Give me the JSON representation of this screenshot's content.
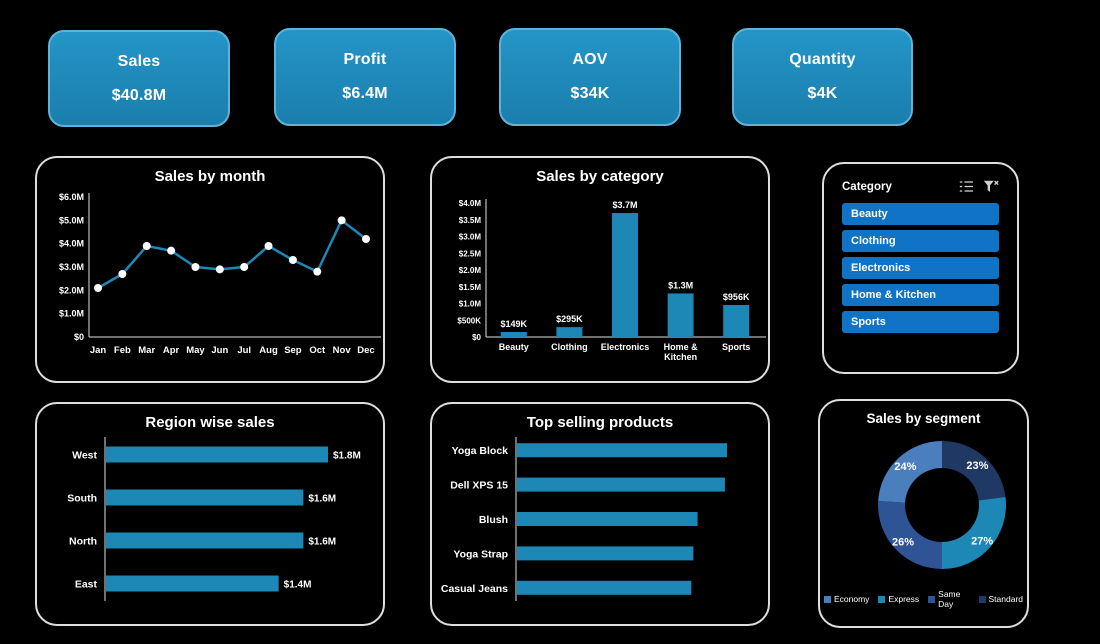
{
  "colors": {
    "background": "#000000",
    "accent": "#1d87b5",
    "axis": "#e0e0e0",
    "kpi_fill": "#1e88b8",
    "kpi_border": "#5fb3d9",
    "slicer_item_fill": "#1173c5",
    "card_border": "#dedede"
  },
  "kpis": [
    {
      "label": "Sales",
      "value": "$40.8M"
    },
    {
      "label": "Profit",
      "value": "$6.4M"
    },
    {
      "label": "AOV",
      "value": "$34K"
    },
    {
      "label": "Quantity",
      "value": "$4K"
    }
  ],
  "slicer": {
    "title": "Category",
    "icons": [
      "select-all-icon",
      "clear-filter-icon"
    ],
    "items": [
      "Beauty",
      "Clothing",
      "Electronics",
      "Home & Kitchen",
      "Sports"
    ]
  },
  "chart_data": [
    {
      "id": "sales_by_month",
      "type": "line",
      "title": "Sales by month",
      "x": [
        "Jan",
        "Feb",
        "Mar",
        "Apr",
        "May",
        "Jun",
        "Jul",
        "Aug",
        "Sep",
        "Oct",
        "Nov",
        "Dec"
      ],
      "values_musd": [
        2.1,
        2.7,
        3.9,
        3.7,
        3.0,
        2.9,
        3.0,
        3.9,
        3.3,
        2.8,
        5.0,
        4.2
      ],
      "ylim": [
        0,
        6
      ],
      "ytick_labels": [
        "$0",
        "$1.0M",
        "$2.0M",
        "$3.0M",
        "$4.0M",
        "$5.0M",
        "$6.0M"
      ],
      "xlabel": "",
      "ylabel": "",
      "marker": "white-dot",
      "grid": false
    },
    {
      "id": "sales_by_category",
      "type": "bar",
      "title": "Sales by category",
      "categories": [
        [
          "Beauty"
        ],
        [
          "Clothing"
        ],
        [
          "Electronics"
        ],
        [
          "Home &",
          "Kitchen"
        ],
        [
          "Sports"
        ]
      ],
      "values_usd": [
        149000,
        295000,
        3700000,
        1300000,
        956000
      ],
      "data_labels": [
        "$149K",
        "$295K",
        "$3.7M",
        "$1.3M",
        "$956K"
      ],
      "ylim": [
        0,
        4000000
      ],
      "ytick_values": [
        0,
        500000,
        1000000,
        1500000,
        2000000,
        2500000,
        3000000,
        3500000,
        4000000
      ],
      "ytick_labels": [
        "$0",
        "$500K",
        "$1.0M",
        "$1.5M",
        "$2.0M",
        "$2.5M",
        "$3.0M",
        "$3.5M",
        "$4.0M"
      ],
      "xlabel": "",
      "ylabel": "",
      "grid": false
    },
    {
      "id": "region_wise_sales",
      "type": "bar-horizontal",
      "title": "Region wise sales",
      "categories": [
        "West",
        "South",
        "North",
        "East"
      ],
      "values": [
        1.8,
        1.6,
        1.6,
        1.4
      ],
      "data_labels": [
        "$1.8M",
        "$1.6M",
        "$1.6M",
        "$1.4M"
      ],
      "xlabel": "",
      "ylabel": "",
      "grid": false
    },
    {
      "id": "top_selling_products",
      "type": "bar-horizontal",
      "title": "Top selling products",
      "categories": [
        "Yoga Block",
        "Dell XPS 15",
        "Blush",
        "Yoga Strap",
        "Casual Jeans"
      ],
      "relative_values": [
        1.0,
        0.99,
        0.86,
        0.84,
        0.83
      ],
      "data_labels": null,
      "xlabel": "",
      "ylabel": "",
      "grid": false
    },
    {
      "id": "sales_by_segment",
      "type": "donut",
      "title": "Sales by segment",
      "segments": [
        {
          "label": "Standard",
          "pct": 23,
          "color": "#1f3864"
        },
        {
          "label": "Express",
          "pct": 27,
          "color": "#1d87b5"
        },
        {
          "label": "Same Day",
          "pct": 26,
          "color": "#2f5496"
        },
        {
          "label": "Economy",
          "pct": 24,
          "color": "#4a7ebc"
        }
      ],
      "legend_position": "bottom",
      "legend": [
        {
          "label": "Economy",
          "color": "#4a7ebc"
        },
        {
          "label": "Express",
          "color": "#1d87b5"
        },
        {
          "label": "Same Day",
          "color": "#2f5496"
        },
        {
          "label": "Standard",
          "color": "#1f3864"
        }
      ]
    }
  ]
}
